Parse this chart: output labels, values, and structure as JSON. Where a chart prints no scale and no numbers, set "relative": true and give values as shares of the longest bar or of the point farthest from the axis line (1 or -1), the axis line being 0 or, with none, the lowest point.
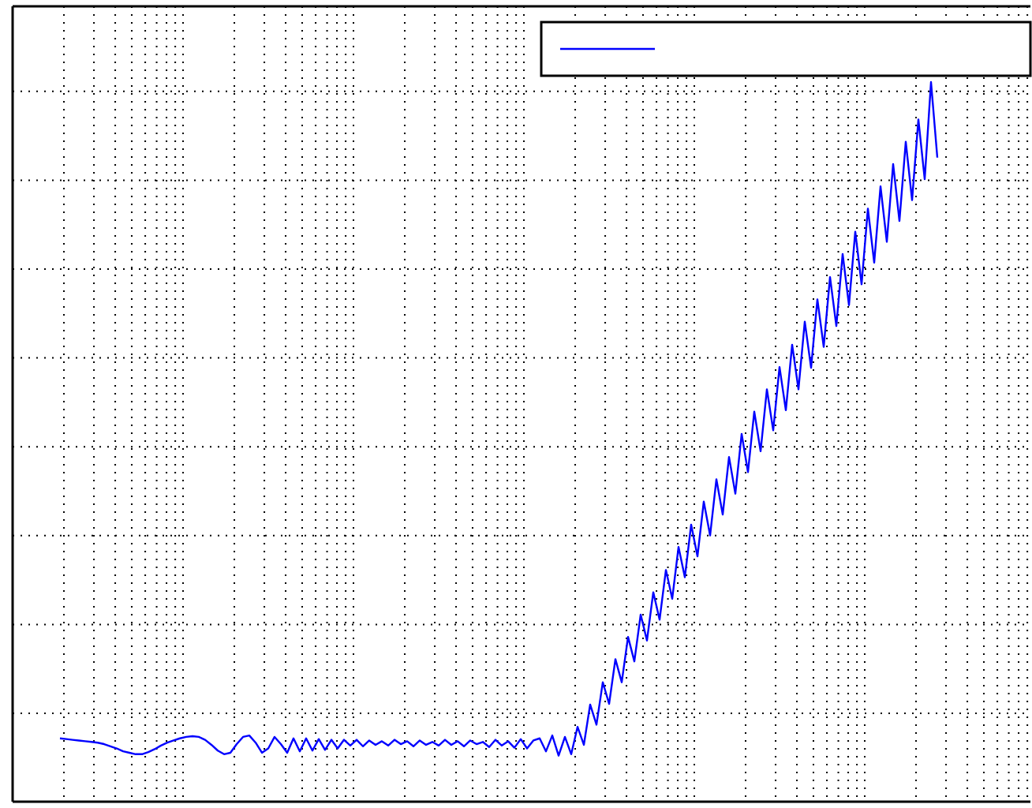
{
  "chart_data": {
    "type": "line",
    "relative": true,
    "grid": true,
    "marker": "none",
    "line_style": "solid",
    "categories": [
      null,
      null,
      null,
      null,
      null,
      null,
      null,
      null,
      null,
      null,
      null,
      null,
      null,
      null,
      null,
      null,
      null,
      null,
      null,
      null,
      null,
      null,
      null,
      null,
      null,
      null,
      null,
      null,
      null,
      null,
      null,
      null,
      null,
      null,
      null,
      null,
      null,
      null,
      null,
      null,
      null,
      null,
      null,
      null,
      null,
      null,
      null,
      null,
      null,
      null,
      null,
      null,
      null,
      null,
      null,
      null,
      null,
      null,
      null,
      null,
      null,
      null,
      null,
      null,
      null,
      null,
      null,
      null,
      null,
      null,
      null,
      null,
      null,
      null,
      null,
      null,
      null,
      null,
      null,
      null,
      null,
      null,
      null,
      null,
      null,
      null,
      null,
      null,
      null,
      null,
      null,
      null,
      null,
      null,
      null,
      null,
      null,
      null,
      null,
      null,
      null,
      null,
      null,
      null,
      null,
      null,
      null,
      null,
      null,
      null,
      null,
      null,
      null,
      null,
      null,
      null,
      null,
      null,
      null,
      null,
      null,
      null,
      null,
      null,
      null,
      null,
      null,
      null,
      null,
      null,
      null,
      null,
      null,
      null,
      null,
      null,
      null,
      null,
      null,
      null
    ],
    "series": [
      {
        "color": "#0000ff",
        "values": [
          0.088,
          0.087,
          0.086,
          0.085,
          0.084,
          0.083,
          0.082,
          0.08,
          0.077,
          0.074,
          0.07,
          0.068,
          0.066,
          0.066,
          0.069,
          0.073,
          0.078,
          0.082,
          0.085,
          0.088,
          0.09,
          0.091,
          0.09,
          0.086,
          0.079,
          0.071,
          0.066,
          0.068,
          0.08,
          0.09,
          0.092,
          0.082,
          0.068,
          0.074,
          0.09,
          0.08,
          0.068,
          0.088,
          0.07,
          0.088,
          0.071,
          0.087,
          0.072,
          0.086,
          0.074,
          0.086,
          0.078,
          0.086,
          0.077,
          0.085,
          0.079,
          0.084,
          0.078,
          0.086,
          0.08,
          0.084,
          0.077,
          0.085,
          0.079,
          0.083,
          0.078,
          0.086,
          0.079,
          0.084,
          0.077,
          0.085,
          0.08,
          0.083,
          0.076,
          0.086,
          0.078,
          0.084,
          0.075,
          0.087,
          0.074,
          0.085,
          0.088,
          0.07,
          0.092,
          0.064,
          0.09,
          0.066,
          0.104,
          0.079,
          0.135,
          0.107,
          0.166,
          0.136,
          0.198,
          0.166,
          0.229,
          0.195,
          0.26,
          0.224,
          0.291,
          0.253,
          0.322,
          0.282,
          0.354,
          0.312,
          0.385,
          0.341,
          0.417,
          0.37,
          0.448,
          0.399,
          0.479,
          0.428,
          0.511,
          0.458,
          0.542,
          0.487,
          0.573,
          0.516,
          0.604,
          0.544,
          0.635,
          0.573,
          0.667,
          0.603,
          0.698,
          0.632,
          0.729,
          0.661,
          0.761,
          0.69,
          0.792,
          0.719,
          0.824,
          0.749,
          0.855,
          0.778,
          0.886,
          0.807,
          0.917,
          0.836,
          0.948,
          0.865,
          1.0,
          0.895
        ]
      }
    ]
  }
}
